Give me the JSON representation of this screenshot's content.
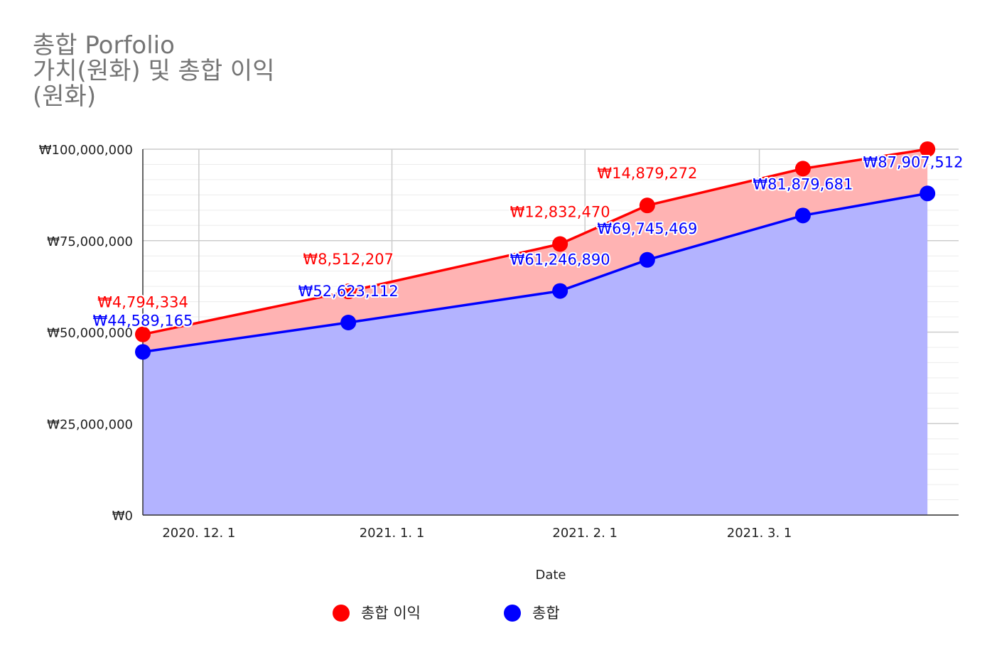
{
  "title_lines": [
    "총합 Porfolio",
    "가치(원화) 및 총합 이익",
    "(원화)"
  ],
  "chart_data": {
    "type": "area",
    "x_axis_label": "Date",
    "x_ticks": [
      {
        "label": "2020. 12. 1",
        "date": "2020-12-01"
      },
      {
        "label": "2021. 1. 1",
        "date": "2021-01-01"
      },
      {
        "label": "2021. 2. 1",
        "date": "2021-02-01"
      },
      {
        "label": "2021. 3. 1",
        "date": "2021-03-01"
      }
    ],
    "y_ticks": [
      "₩0",
      "₩25,000,000",
      "₩50,000,000",
      "₩75,000,000",
      "₩100,000,000"
    ],
    "y_range": [
      0,
      100000000
    ],
    "x_range": [
      "2020-11-22",
      "2021-04-02"
    ],
    "stacked": true,
    "grid": true,
    "legend_position": "bottom",
    "series": [
      {
        "name": "총합 이익",
        "color": "#ff0000",
        "fill": "#ffb3b3",
        "points": [
          {
            "date": "2020-11-22",
            "value": 4794334,
            "label": "₩4,794,334"
          },
          {
            "date": "2020-12-25",
            "value": 8512207,
            "label": "₩8,512,207"
          },
          {
            "date": "2021-01-28",
            "value": 12832470,
            "label": "₩12,832,470"
          },
          {
            "date": "2021-02-11",
            "value": 14879272,
            "label": "₩14,879,272"
          },
          {
            "date": "2021-03-08",
            "value": 12800000,
            "label": ""
          },
          {
            "date": "2021-03-28",
            "value": 12100000,
            "label": ""
          }
        ]
      },
      {
        "name": "총합",
        "color": "#0000ff",
        "fill": "#b3b3ff",
        "points": [
          {
            "date": "2020-11-22",
            "value": 44589165,
            "label": "₩44,589,165"
          },
          {
            "date": "2020-12-25",
            "value": 52623112,
            "label": "₩52,623,112"
          },
          {
            "date": "2021-01-28",
            "value": 61246890,
            "label": "₩61,246,890"
          },
          {
            "date": "2021-02-11",
            "value": 69745469,
            "label": "₩69,745,469"
          },
          {
            "date": "2021-03-08",
            "value": 81879681,
            "label": "₩81,879,681"
          },
          {
            "date": "2021-03-28",
            "value": 87907512,
            "label": "₩87,907,512"
          }
        ]
      }
    ]
  }
}
